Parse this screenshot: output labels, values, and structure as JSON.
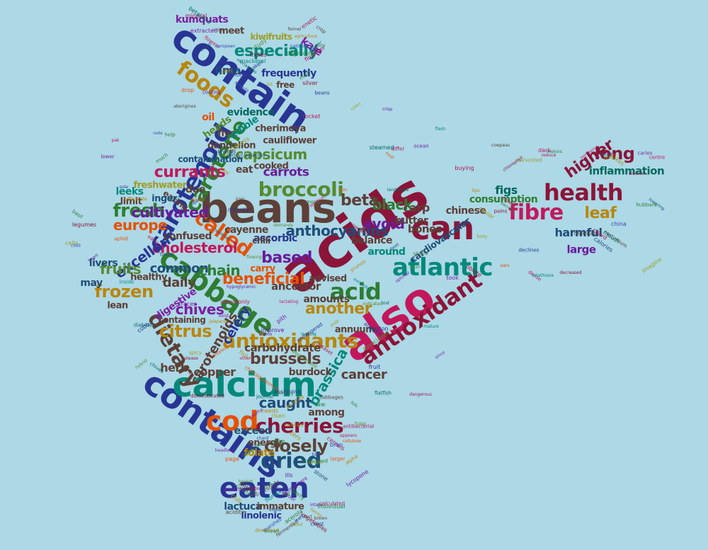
{
  "palette": [
    "#8b1538",
    "#2e7d32",
    "#1f4e79",
    "#6a1b9a",
    "#b8860b",
    "#00897b",
    "#c2185b",
    "#558b2f",
    "#283593",
    "#e65100",
    "#7b1fa2",
    "#00695c",
    "#5d4037",
    "#ad1457",
    "#3949ab",
    "#9e9d24"
  ],
  "words": {
    "acids": "acids",
    "beans": "beans",
    "also": "also",
    "contain": "contain",
    "contains": "contains",
    "calcium": "calcium",
    "cabbage": "cabbage",
    "antioxidant": "antioxidant",
    "antioxidants": "antioxidants",
    "health": "health",
    "atlantic": "atlantic",
    "carotenoid": "carotenoid",
    "carotene": "carotene",
    "can": "can",
    "acid": "acid",
    "eaten": "eaten",
    "dried": "dried",
    "cherries": "cherries",
    "fibre": "fibre",
    "called": "called",
    "cod": "cod",
    "broccoli": "broccoli",
    "foods": "foods",
    "especially": "especially",
    "dietary": "dietary",
    "frozen": "frozen",
    "currants": "currants",
    "closely": "closely",
    "citrus": "citrus",
    "fresh": "fresh",
    "beneficial": "beneficial",
    "cholesterol": "cholesterol",
    "capsicum": "capsicum",
    "anthocyanins": "anthocyanins",
    "excellent": "excellent",
    "fruits": "fruits",
    "higher": "higher",
    "long": "long",
    "leaf": "leaf",
    "europe": "europe",
    "chives": "chives",
    "carotenoids": "carotenoids",
    "another": "another",
    "black": "black",
    "beta": "beta",
    "brussels": "brussels",
    "based": "based",
    "celery": "celery",
    "cultivated": "cultivated",
    "brassica": "brassica",
    "caught": "caught",
    "cancer": "cancer",
    "carrots": "carrots",
    "common": "common",
    "daily": "daily",
    "chain": "chain",
    "avoid": "avoid",
    "carp": "carp",
    "copper": "copper",
    "herb": "herb",
    "carbohydrate": "carbohydrate",
    "inflammation": "inflammation",
    "consumption": "consumption",
    "figs": "figs",
    "harmful": "harmful",
    "large": "large",
    "chinese": "chinese",
    "cardiovascular": "cardiovascular",
    "bones": "bones",
    "balance": "balance",
    "around": "around",
    "butter": "butter",
    "ascorbic": "ascorbic",
    "ancestor": "ancestor",
    "amounts": "amounts",
    "advised": "advised",
    "among": "among",
    "exceed": "exceed",
    "energy": "energy",
    "folate": "folate",
    "lactuca": "lactuca",
    "immature": "immature",
    "linolenic": "linolenic",
    "burdock": "burdock",
    "annuum": "annuum",
    "digestive": "digestive",
    "livers": "livers",
    "healthy": "healthy",
    "may": "may",
    "lean": "lean",
    "leeks": "leeks",
    "limit": "limit",
    "due": "due",
    "eat": "eat",
    "cooked": "cooked",
    "cauliflower": "cauliflower",
    "cherimoya": "cherimoya",
    "dandelion": "dandelion",
    "contamination": "contamination",
    "five": "five",
    "heads": "heads",
    "edible": "edible",
    "evidence": "evidence",
    "containing": "containing",
    "free": "free",
    "frequently": "frequently",
    "lima": "lima",
    "kale": "kale",
    "kumquats": "kumquats",
    "kiwifruits": "kiwifruits",
    "meet": "meet",
    "cayenne": "cayenne",
    "chili": "chili",
    "confused": "confused",
    "freshwater": "freshwater",
    "eating": "eating",
    "ginger": "inger",
    "carry": "carry",
    "oil": "oil"
  },
  "small_words": [
    "taken",
    "officinale",
    "optimal",
    "please",
    "lycopene",
    "oldest",
    "lowering",
    "national",
    "spices",
    "hypoglycemic",
    "pith",
    "tuna",
    "intake",
    "flakes",
    "beans",
    "pak",
    "exceeding",
    "dataset",
    "zero",
    "essential",
    "elsevier",
    "mineral",
    "much",
    "healthier",
    "hybrid",
    "journal",
    "download",
    "melons",
    "flowers",
    "mono",
    "took",
    "herring",
    "onion",
    "listed",
    "maintain",
    "indies",
    "encyclopaedia",
    "ingredients",
    "since",
    "page",
    "marshes",
    "northern",
    "study",
    "lepidium",
    "legumes",
    "lacking",
    "risen",
    "ocean",
    "harvested",
    "european",
    "skin",
    "inside",
    "others",
    "larger",
    "highly",
    "hubbard",
    "flower",
    "distantly",
    "heart",
    "department",
    "domesticated",
    "hemisphere",
    "imagine",
    "silver",
    "plos",
    "oblate",
    "jalapeno",
    "pike",
    "zinc",
    "reduce",
    "mackerel",
    "roup",
    "flowing",
    "improve",
    "raw",
    "florida",
    "pains",
    "degrading",
    "tips",
    "commonly",
    "chalcogrammus",
    "database",
    "coriander",
    "dense",
    "enetic",
    "colon",
    "basil",
    "cantaloupe",
    "bbc",
    "leafy",
    "china",
    "crops",
    "complaints",
    "cells",
    "boston",
    "cereals",
    "fact",
    "centre",
    "bread",
    "help",
    "anti",
    "fish",
    "chard",
    "cod",
    "chard",
    "colors",
    "steamed",
    "caviar",
    "exist",
    "folk",
    "chest",
    "blood",
    "mold",
    "almonds",
    "beet",
    "amino",
    "antibacterial",
    "bitter",
    "care",
    "crop",
    "landscape",
    "traces",
    "mature",
    "radicals",
    "paradisi",
    "nasturtium",
    "merlangius",
    "rocket",
    "phoma",
    "spicy",
    "stone",
    "haricot",
    "lutathione",
    "peel",
    "sole",
    "prunus",
    "pulp",
    "needs",
    "individual",
    "mouth",
    "story",
    "flesh",
    "lactating",
    "endangered",
    "headless",
    "family",
    "zero",
    "flounder",
    "ocean",
    "boron",
    "associated",
    "bran",
    "vegetables",
    "decreased",
    "list",
    "fiber",
    "chilli",
    "chives",
    "cellulose",
    "calculated",
    "cowpeas",
    "betalains",
    "kiwi",
    "bod",
    "aromatic",
    "appears",
    "acidity",
    "berries",
    "agriculture",
    "aborigines",
    "asian",
    "dangerous",
    "alpha",
    "brown",
    "calories",
    "arugula",
    "differ",
    "demands",
    "diabetes",
    "existed",
    "chili",
    "chlorophyll",
    "coating",
    "buying",
    "body",
    "assigning",
    "consumed",
    "cucurbita",
    "declines",
    "extracted",
    "lower",
    "indicated",
    "flatfish",
    "cabbages",
    "fermented",
    "caries",
    "fennel",
    "crisp",
    "aphid",
    "fruit",
    "ills",
    "berry",
    "dark",
    "drop",
    "note",
    "early",
    "cobb",
    "colorful",
    "acerola",
    "ears"
  ]
}
